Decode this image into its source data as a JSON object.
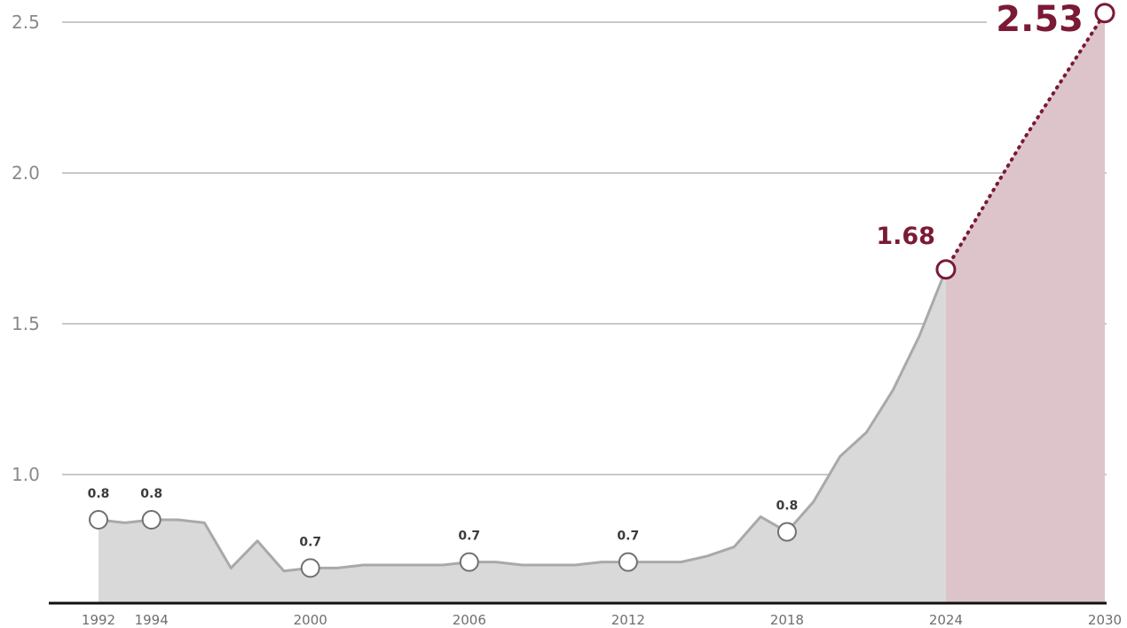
{
  "colors": {
    "background": "#ffffff",
    "grid": "#c9c9c9",
    "area_fill": "#d9d9d9",
    "line": "#a9a9a9",
    "forecast_fill": "#ddc4cb",
    "highlight": "#7a1a35",
    "marker_fill": "#ffffff",
    "marker_stroke": "#707070",
    "baseline": "#111111"
  },
  "chart_data": {
    "type": "area",
    "title": "",
    "xlabel": "",
    "ylabel": "",
    "xlim": [
      1992,
      2030
    ],
    "ylim": [
      0.6,
      2.53
    ],
    "grid": true,
    "y_ticks": [
      {
        "value": 1.0,
        "label": "1.0"
      },
      {
        "value": 1.5,
        "label": "1.5"
      },
      {
        "value": 2.0,
        "label": "2.0"
      },
      {
        "value": 2.5,
        "label": "2.5"
      }
    ],
    "x_ticks": [
      {
        "value": 1992,
        "label": "1992"
      },
      {
        "value": 1994,
        "label": "1994"
      },
      {
        "value": 2000,
        "label": "2000"
      },
      {
        "value": 2006,
        "label": "2006"
      },
      {
        "value": 2012,
        "label": "2012"
      },
      {
        "value": 2018,
        "label": "2018"
      },
      {
        "value": 2024,
        "label": "2024"
      },
      {
        "value": 2030,
        "label": "2030"
      }
    ],
    "series": [
      {
        "style": "solid",
        "x": [
          1992,
          1993,
          1994,
          1995,
          1996,
          1997,
          1998,
          1999,
          2000,
          2001,
          2002,
          2003,
          2004,
          2005,
          2006,
          2007,
          2008,
          2009,
          2010,
          2011,
          2012,
          2013,
          2014,
          2015,
          2016,
          2017,
          2018,
          2019,
          2020,
          2021,
          2022,
          2023,
          2024
        ],
        "y": [
          0.85,
          0.84,
          0.85,
          0.85,
          0.84,
          0.69,
          0.78,
          0.68,
          0.69,
          0.69,
          0.7,
          0.7,
          0.7,
          0.7,
          0.71,
          0.71,
          0.7,
          0.7,
          0.7,
          0.71,
          0.71,
          0.71,
          0.71,
          0.73,
          0.76,
          0.86,
          0.81,
          0.91,
          1.06,
          1.14,
          1.28,
          1.46,
          1.68
        ]
      },
      {
        "style": "dotted",
        "x": [
          2024,
          2027,
          2030
        ],
        "y": [
          1.68,
          2.12,
          2.53
        ]
      }
    ],
    "forecast_region": [
      2024,
      2030
    ],
    "annotations": [
      {
        "x": 1992,
        "y": 0.85,
        "label": "0.8"
      },
      {
        "x": 1994,
        "y": 0.85,
        "label": "0.8"
      },
      {
        "x": 2000,
        "y": 0.69,
        "label": "0.7"
      },
      {
        "x": 2006,
        "y": 0.71,
        "label": "0.7"
      },
      {
        "x": 2012,
        "y": 0.71,
        "label": "0.7"
      },
      {
        "x": 2018,
        "y": 0.81,
        "label": "0.8"
      }
    ],
    "highlights": [
      {
        "x": 2024,
        "y": 1.68,
        "label": "1.68"
      },
      {
        "x": 2030,
        "y": 2.53,
        "label": "2.53"
      }
    ]
  }
}
